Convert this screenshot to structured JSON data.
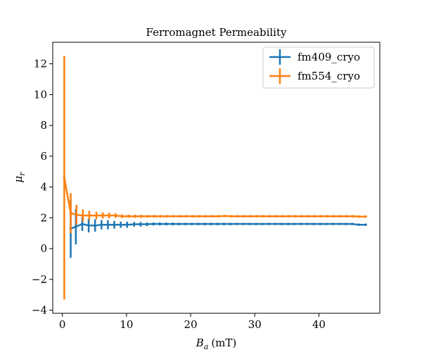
{
  "chart_data": {
    "type": "line",
    "title": "Ferromagnet Permeability",
    "xlabel_main": "B",
    "xlabel_sub": "a",
    "xlabel_unit": "(mT)",
    "ylabel_main": "μ",
    "ylabel_sub": "r",
    "xlim": [
      -1.5,
      49.5
    ],
    "ylim": [
      -4.2,
      13.4
    ],
    "xticks": [
      0,
      10,
      20,
      30,
      40
    ],
    "yticks": [
      -4,
      -2,
      0,
      2,
      4,
      6,
      8,
      10,
      12
    ],
    "ytick_labels": [
      "−4",
      "−2",
      "0",
      "2",
      "4",
      "6",
      "8",
      "10",
      "12"
    ],
    "grid": false,
    "legend_position": "top-right",
    "series": [
      {
        "name": "fm409_cryo",
        "color": "#1f77b4",
        "x": [
          1.3,
          2.1,
          3.1,
          4.1,
          5.1,
          6.1,
          7.1,
          8.1,
          9.1,
          10.1,
          11.2,
          12.2,
          13.2,
          14.2,
          15.2,
          16.2,
          17.2,
          18.2,
          19.2,
          20.2,
          21.2,
          22.2,
          23.2,
          24.2,
          25.2,
          26.2,
          27.2,
          28.2,
          29.2,
          30.2,
          31.2,
          32.2,
          33.2,
          34.2,
          35.2,
          36.2,
          37.2,
          38.2,
          39.2,
          40.2,
          41.2,
          42.2,
          43.2,
          44.2,
          45.2,
          46.2,
          47.3
        ],
        "y": [
          1.3,
          1.42,
          1.6,
          1.5,
          1.5,
          1.55,
          1.55,
          1.55,
          1.55,
          1.55,
          1.58,
          1.58,
          1.58,
          1.6,
          1.6,
          1.6,
          1.6,
          1.6,
          1.6,
          1.6,
          1.6,
          1.6,
          1.6,
          1.6,
          1.6,
          1.6,
          1.6,
          1.6,
          1.6,
          1.6,
          1.6,
          1.6,
          1.6,
          1.6,
          1.6,
          1.6,
          1.6,
          1.6,
          1.6,
          1.6,
          1.6,
          1.6,
          1.6,
          1.6,
          1.6,
          1.55,
          1.55
        ],
        "yerr": [
          1.9,
          1.15,
          0.45,
          0.45,
          0.4,
          0.3,
          0.3,
          0.25,
          0.2,
          0.2,
          0.15,
          0.15,
          0.12,
          0.1,
          0.1,
          0.1,
          0.1,
          0.08,
          0.08,
          0.08,
          0.08,
          0.08,
          0.08,
          0.08,
          0.08,
          0.08,
          0.06,
          0.06,
          0.06,
          0.06,
          0.06,
          0.06,
          0.06,
          0.06,
          0.06,
          0.06,
          0.06,
          0.06,
          0.06,
          0.06,
          0.06,
          0.06,
          0.06,
          0.06,
          0.06,
          0.06,
          0.06
        ]
      },
      {
        "name": "fm554_cryo",
        "color": "#ff7f0e",
        "x": [
          0.3,
          1.3,
          2.2,
          3.2,
          4.2,
          5.3,
          6.3,
          7.3,
          8.3,
          9.3,
          10.3,
          11.3,
          12.3,
          13.3,
          14.3,
          15.3,
          16.3,
          17.3,
          18.3,
          19.3,
          20.3,
          21.3,
          22.3,
          23.3,
          24.3,
          25.3,
          26.3,
          27.3,
          28.3,
          29.3,
          30.3,
          31.3,
          32.3,
          33.3,
          34.3,
          35.3,
          36.3,
          37.3,
          38.3,
          39.3,
          40.3,
          41.3,
          42.3,
          43.3,
          44.3,
          45.3,
          46.3,
          47.3
        ],
        "y": [
          4.6,
          2.3,
          2.2,
          2.15,
          2.15,
          2.15,
          2.15,
          2.15,
          2.15,
          2.1,
          2.1,
          2.1,
          2.1,
          2.1,
          2.1,
          2.1,
          2.1,
          2.1,
          2.1,
          2.1,
          2.1,
          2.1,
          2.1,
          2.1,
          2.1,
          2.12,
          2.1,
          2.1,
          2.1,
          2.1,
          2.1,
          2.1,
          2.1,
          2.1,
          2.1,
          2.1,
          2.1,
          2.1,
          2.1,
          2.1,
          2.1,
          2.1,
          2.1,
          2.1,
          2.1,
          2.1,
          2.08,
          2.08
        ],
        "yerr": [
          7.9,
          1.3,
          0.65,
          0.4,
          0.3,
          0.25,
          0.2,
          0.18,
          0.15,
          0.12,
          0.1,
          0.1,
          0.1,
          0.08,
          0.08,
          0.08,
          0.06,
          0.06,
          0.06,
          0.06,
          0.05,
          0.05,
          0.05,
          0.05,
          0.05,
          0.05,
          0.05,
          0.05,
          0.05,
          0.05,
          0.05,
          0.05,
          0.05,
          0.05,
          0.05,
          0.05,
          0.05,
          0.05,
          0.05,
          0.05,
          0.05,
          0.05,
          0.05,
          0.05,
          0.05,
          0.05,
          0.05,
          0.05
        ]
      }
    ]
  }
}
